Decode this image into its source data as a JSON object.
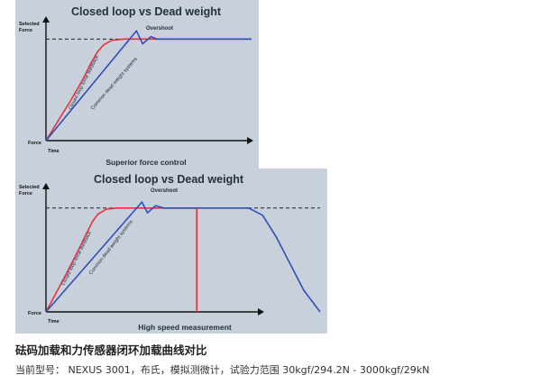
{
  "chart_data": [
    {
      "type": "line",
      "title": "Closed loop vs Dead weight",
      "xlabel": "Time",
      "ylabel_top": "Selected Force",
      "ylabel_bottom": "Force",
      "footer": "Superior force control",
      "annotation": "Overshoot",
      "series_labels": [
        "Closed loop force feedback",
        "Common dead weight systems"
      ],
      "colors": {
        "closed_loop": "#e8323c",
        "dead_weight": "#2f4fb8",
        "selected": "#222222"
      },
      "xlim": [
        0,
        1
      ],
      "ylim": [
        0,
        1
      ],
      "selected_force": 0.86,
      "series": [
        {
          "key": "closed_loop",
          "x": [
            0,
            0.06,
            0.12,
            0.18,
            0.22,
            0.25,
            0.28,
            0.32,
            0.38,
            1.0
          ],
          "y": [
            0,
            0.17,
            0.34,
            0.52,
            0.66,
            0.75,
            0.81,
            0.85,
            0.86,
            0.86
          ]
        },
        {
          "key": "dead_weight",
          "x": [
            0,
            0.44,
            0.47,
            0.51,
            0.54,
            1.0
          ],
          "y": [
            0,
            0.93,
            0.82,
            0.88,
            0.86,
            0.86
          ]
        }
      ]
    },
    {
      "type": "line",
      "title": "Closed loop vs Dead weight",
      "xlabel": "Time",
      "ylabel_top": "Selected Force",
      "ylabel_bottom": "Force",
      "footer": "High speed measurement",
      "annotation": "Overshoot",
      "series_labels": [
        "Closed loop force feedback",
        "Common dead weight systems"
      ],
      "colors": {
        "closed_loop": "#e8323c",
        "dead_weight": "#2f4fb8",
        "selected": "#222222"
      },
      "xlim": [
        0,
        1
      ],
      "ylim": [
        0,
        1
      ],
      "selected_force": 0.86,
      "series": [
        {
          "key": "closed_loop",
          "x": [
            0,
            0.04,
            0.08,
            0.12,
            0.15,
            0.17,
            0.19,
            0.22,
            0.26,
            0.55,
            0.55
          ],
          "y": [
            0,
            0.17,
            0.34,
            0.52,
            0.66,
            0.75,
            0.81,
            0.85,
            0.86,
            0.86,
            0
          ]
        },
        {
          "key": "dead_weight",
          "x": [
            0,
            0.35,
            0.37,
            0.4,
            0.43,
            0.74,
            0.79,
            0.84,
            0.89,
            0.94,
            1.0
          ],
          "y": [
            0,
            0.91,
            0.82,
            0.88,
            0.86,
            0.86,
            0.8,
            0.62,
            0.4,
            0.18,
            0
          ]
        }
      ]
    }
  ],
  "caption": "砝码加载和力传感器闭环加载曲线对比",
  "subcaption": "当前型号： NEXUS 3001，布氏，模拟测微计，试验力范围 30kgf/294.2N - 3000kgf/29kN"
}
